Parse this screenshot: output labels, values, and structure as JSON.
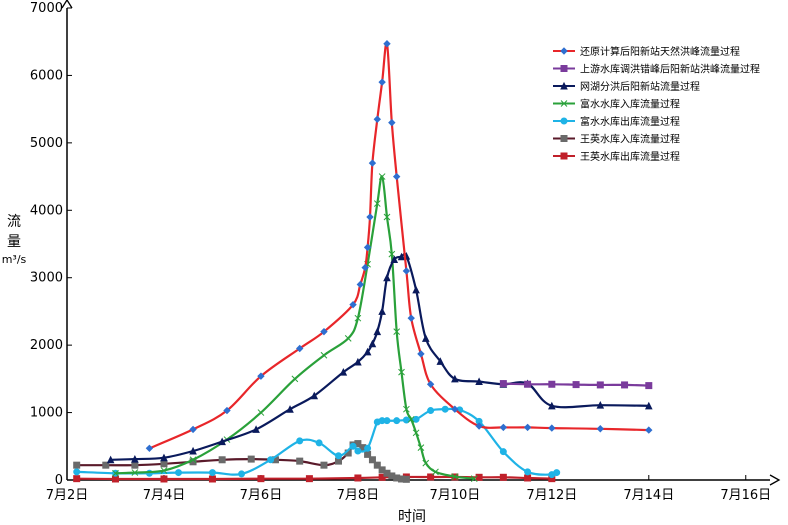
{
  "chart_data": {
    "type": "line",
    "title": "",
    "xlabel": "时间",
    "ylabel_lines": [
      "流",
      "量"
    ],
    "ylabel_unit": "m³/s",
    "xlim": [
      2,
      16.5
    ],
    "ylim": [
      0,
      7000
    ],
    "x_ticks": [
      2,
      4,
      6,
      8,
      10,
      12,
      14,
      16
    ],
    "x_tick_labels": [
      "7月2日",
      "7月4日",
      "7月6日",
      "7月8日",
      "7月10日",
      "7月12日",
      "7月14日",
      "7月16日"
    ],
    "y_ticks": [
      0,
      1000,
      2000,
      3000,
      4000,
      5000,
      6000,
      7000
    ],
    "y_tick_labels": [
      "0",
      "1000",
      "2000",
      "3000",
      "4000",
      "5000",
      "6000",
      "7000"
    ],
    "grid": false,
    "legend_position": "top-right",
    "series": [
      {
        "name": "还原计算后阳新站天然洪峰流量过程",
        "color": "#e8262a",
        "marker": "diamond",
        "marker_color": "#2f6fd0",
        "x": [
          3.7,
          4.6,
          5.3,
          6.0,
          6.8,
          7.3,
          7.9,
          8.05,
          8.15,
          8.2,
          8.25,
          8.3,
          8.4,
          8.5,
          8.6,
          8.7,
          8.8,
          9.0,
          9.1,
          9.3,
          9.5,
          10.0,
          10.5,
          11.0,
          11.5,
          12.0,
          13.0,
          14.0
        ],
        "y": [
          470,
          750,
          1030,
          1540,
          1950,
          2200,
          2600,
          2900,
          3150,
          3450,
          3900,
          4700,
          5350,
          5900,
          6470,
          5300,
          4500,
          3100,
          2400,
          1870,
          1420,
          1050,
          800,
          780,
          780,
          770,
          760,
          740
        ]
      },
      {
        "name": "上游水库调洪错峰后阳新站洪峰流量过程",
        "color": "#7a3b9c",
        "marker": "square",
        "marker_color": "#7a3b9c",
        "x": [
          11.0,
          11.5,
          12.0,
          12.5,
          13.0,
          13.5,
          14.0
        ],
        "y": [
          1430,
          1420,
          1420,
          1415,
          1410,
          1410,
          1400
        ]
      },
      {
        "name": "网湖分洪后阳新站流量过程",
        "color": "#0a1a5c",
        "marker": "triangle",
        "marker_color": "#0a1a5c",
        "x": [
          2.9,
          3.4,
          4.0,
          4.6,
          5.2,
          5.9,
          6.6,
          7.1,
          7.7,
          8.0,
          8.2,
          8.3,
          8.4,
          8.5,
          8.6,
          8.75,
          8.9,
          9.0,
          9.2,
          9.4,
          9.7,
          10.0,
          10.5,
          11.0,
          11.5,
          12.0,
          13.0,
          14.0
        ],
        "y": [
          300,
          310,
          330,
          430,
          570,
          750,
          1050,
          1250,
          1600,
          1750,
          1900,
          2020,
          2200,
          2500,
          3000,
          3270,
          3310,
          3320,
          2820,
          2100,
          1760,
          1500,
          1460,
          1420,
          1430,
          1100,
          1110,
          1100
        ]
      },
      {
        "name": "富水水库入库流量过程",
        "color": "#2aa13a",
        "marker": "x",
        "marker_color": "#2aa13a",
        "x": [
          3.0,
          3.4,
          4.0,
          4.6,
          5.3,
          6.0,
          6.7,
          7.3,
          7.8,
          8.0,
          8.2,
          8.4,
          8.5,
          8.6,
          8.7,
          8.8,
          8.9,
          9.0,
          9.1,
          9.2,
          9.3,
          9.4,
          9.6,
          10.0,
          10.4
        ],
        "y": [
          100,
          110,
          140,
          300,
          600,
          1000,
          1500,
          1850,
          2100,
          2400,
          3200,
          4100,
          4500,
          3900,
          3350,
          2200,
          1600,
          1050,
          900,
          700,
          480,
          250,
          120,
          50,
          20
        ]
      },
      {
        "name": "富水水库出库流量过程",
        "color": "#1fb3e6",
        "marker": "circle",
        "marker_color": "#1fb3e6",
        "x": [
          2.2,
          3.0,
          3.7,
          4.3,
          5.0,
          5.6,
          6.2,
          6.8,
          7.2,
          7.6,
          7.9,
          8.0,
          8.2,
          8.4,
          8.5,
          8.6,
          8.8,
          9.0,
          9.2,
          9.5,
          9.8,
          10.1,
          10.5,
          11.0,
          11.5,
          12.0,
          12.1
        ],
        "y": [
          120,
          100,
          100,
          110,
          110,
          90,
          300,
          580,
          550,
          360,
          500,
          430,
          470,
          860,
          880,
          880,
          880,
          890,
          900,
          1030,
          1050,
          1040,
          870,
          420,
          120,
          80,
          110
        ]
      },
      {
        "name": "王英水库入库流量过程",
        "color": "#5a1a2a",
        "marker": "square",
        "marker_color": "#6a6a6a",
        "x": [
          2.2,
          2.8,
          3.4,
          4.0,
          4.6,
          5.2,
          5.8,
          6.3,
          6.8,
          7.3,
          7.6,
          7.8,
          7.9,
          8.0,
          8.1,
          8.2,
          8.3,
          8.4,
          8.5,
          8.6,
          8.7,
          8.8,
          8.9,
          9.0
        ],
        "y": [
          220,
          220,
          220,
          240,
          270,
          300,
          310,
          300,
          280,
          220,
          280,
          400,
          520,
          540,
          480,
          380,
          300,
          220,
          150,
          100,
          60,
          30,
          15,
          10
        ]
      },
      {
        "name": "王英水库出库流量过程",
        "color": "#c0202a",
        "marker": "square",
        "marker_color": "#c0202a",
        "x": [
          2.2,
          3.0,
          4.0,
          5.0,
          6.0,
          7.0,
          8.0,
          8.5,
          9.0,
          9.5,
          10.0,
          10.5,
          11.0,
          11.5,
          12.0
        ],
        "y": [
          20,
          15,
          15,
          15,
          20,
          20,
          30,
          40,
          45,
          45,
          45,
          40,
          40,
          30,
          20
        ]
      }
    ]
  }
}
